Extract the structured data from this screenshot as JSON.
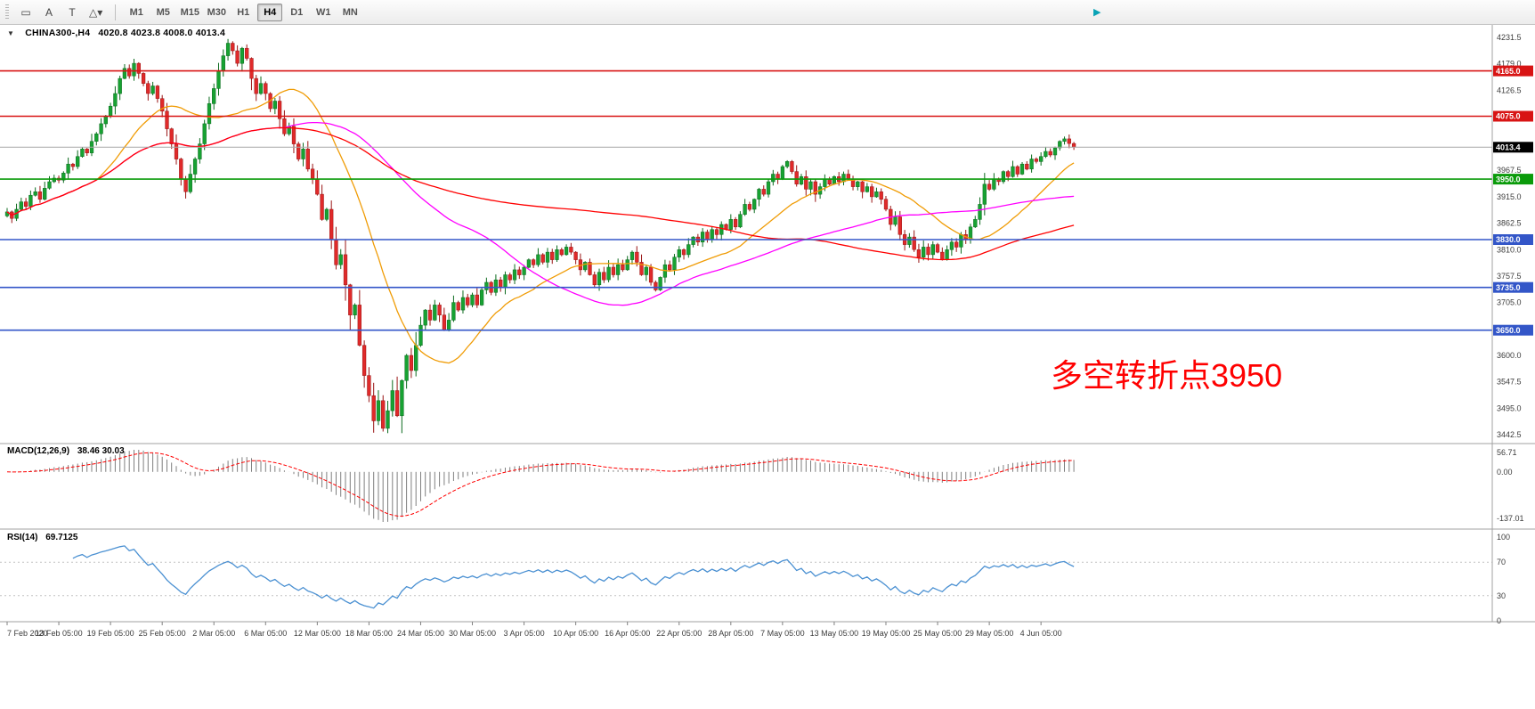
{
  "toolbar": {
    "tools": [
      {
        "id": "selection-tool",
        "glyph": "▭"
      },
      {
        "id": "text-tool",
        "glyph": "A"
      },
      {
        "id": "text-label-tool",
        "glyph": "T"
      },
      {
        "id": "shapes-tool",
        "glyph": "△▾"
      }
    ],
    "timeframes": [
      "M1",
      "M5",
      "M15",
      "M30",
      "H1",
      "H4",
      "D1",
      "W1",
      "MN"
    ],
    "active_timeframe": "H4",
    "shift_icon_glyph": "▶"
  },
  "header": {
    "dropdown_glyph": "▼",
    "symbol_period": "CHINA300-,H4",
    "ohlc_values": "4020.8 4023.8 4008.0 4013.4"
  },
  "chart_data": {
    "type": "candlestick",
    "symbol": "CHINA300-",
    "period": "H4",
    "y_max": 4231.5,
    "y_min": 3442.5,
    "y_ticks_visible": [
      "4231.5",
      "4179.0",
      "4126.5",
      "3967.5",
      "3915.0",
      "3862.5",
      "3810.0",
      "3757.5",
      "3705.0",
      "3600.0",
      "3547.5",
      "3495.0",
      "3442.5"
    ],
    "price_badges": [
      {
        "label": "4165.0",
        "price": 4165.0,
        "color": "#d81414",
        "kind": "resistance"
      },
      {
        "label": "4075.0",
        "price": 4075.0,
        "color": "#d81414",
        "kind": "resistance"
      },
      {
        "label": "3950.0",
        "price": 3950.0,
        "color": "#0a9b0a",
        "kind": "pivot"
      },
      {
        "label": "3830.0",
        "price": 3830.0,
        "color": "#3356c8",
        "kind": "support"
      },
      {
        "label": "3735.0",
        "price": 3735.0,
        "color": "#3356c8",
        "kind": "support"
      },
      {
        "label": "3650.0",
        "price": 3650.0,
        "color": "#3356c8",
        "kind": "support"
      }
    ],
    "current_price": {
      "label": "4013.4",
      "price": 4013.4,
      "color": "#000000"
    },
    "last_candle": {
      "open": 4020.8,
      "high": 4023.8,
      "low": 4008.0,
      "close": 4013.4
    },
    "x_labels": [
      "7 Feb 2020",
      "13 Feb 05:00",
      "19 Feb 05:00",
      "25 Feb 05:00",
      "2 Mar 05:00",
      "6 Mar 05:00",
      "12 Mar 05:00",
      "18 Mar 05:00",
      "24 Mar 05:00",
      "30 Mar 05:00",
      "3 Apr 05:00",
      "10 Apr 05:00",
      "16 Apr 05:00",
      "22 Apr 05:00",
      "28 Apr 05:00",
      "7 May 05:00",
      "13 May 05:00",
      "19 May 05:00",
      "25 May 05:00",
      "29 May 05:00",
      "4 Jun 05:00"
    ],
    "bars_per_label": 11,
    "closes": [
      3885,
      3872,
      3890,
      3905,
      3896,
      3918,
      3925,
      3910,
      3932,
      3945,
      3952,
      3948,
      3962,
      3980,
      3975,
      3995,
      4010,
      4002,
      4025,
      4040,
      4060,
      4075,
      4095,
      4120,
      4150,
      4170,
      4155,
      4180,
      4160,
      4140,
      4120,
      4135,
      4110,
      4085,
      4050,
      4020,
      3990,
      3950,
      3925,
      3960,
      3990,
      4020,
      4060,
      4100,
      4130,
      4165,
      4195,
      4220,
      4205,
      4180,
      4210,
      4190,
      4150,
      4120,
      4140,
      4120,
      4090,
      4105,
      4070,
      4040,
      4055,
      4020,
      3990,
      4010,
      3970,
      3950,
      3920,
      3870,
      3890,
      3830,
      3780,
      3800,
      3740,
      3680,
      3700,
      3620,
      3560,
      3520,
      3470,
      3510,
      3455,
      3490,
      3530,
      3480,
      3550,
      3600,
      3570,
      3620,
      3660,
      3690,
      3670,
      3700,
      3680,
      3650,
      3670,
      3705,
      3690,
      3715,
      3700,
      3720,
      3700,
      3730,
      3745,
      3725,
      3750,
      3735,
      3760,
      3750,
      3770,
      3760,
      3775,
      3790,
      3780,
      3800,
      3785,
      3805,
      3790,
      3810,
      3800,
      3815,
      3805,
      3790,
      3770,
      3785,
      3760,
      3740,
      3765,
      3750,
      3775,
      3760,
      3780,
      3770,
      3790,
      3805,
      3785,
      3760,
      3775,
      3745,
      3730,
      3755,
      3780,
      3770,
      3795,
      3810,
      3800,
      3820,
      3835,
      3825,
      3845,
      3830,
      3850,
      3840,
      3860,
      3850,
      3870,
      3855,
      3880,
      3900,
      3890,
      3910,
      3930,
      3920,
      3945,
      3960,
      3950,
      3975,
      3985,
      3965,
      3940,
      3955,
      3930,
      3945,
      3920,
      3935,
      3950,
      3940,
      3955,
      3945,
      3960,
      3950,
      3935,
      3945,
      3925,
      3935,
      3915,
      3925,
      3910,
      3890,
      3860,
      3875,
      3840,
      3820,
      3835,
      3810,
      3795,
      3815,
      3800,
      3820,
      3805,
      3790,
      3810,
      3825,
      3815,
      3840,
      3830,
      3855,
      3870,
      3900,
      3940,
      3930,
      3950,
      3945,
      3965,
      3955,
      3975,
      3960,
      3980,
      3970,
      3990,
      3985,
      3995,
      4005,
      3998,
      4012,
      4025,
      4030,
      4020.8,
      4013.4
    ],
    "ma_lines": [
      {
        "name": "ma-fast",
        "period": 20,
        "color": "#f09c06"
      },
      {
        "name": "ma-medium",
        "period": 60,
        "color": "#ff00ff"
      },
      {
        "name": "ma-slow",
        "period": 130,
        "color": "#ff0000"
      }
    ],
    "annotation": {
      "text": "多空转折点3950",
      "color": "#ff0000"
    },
    "macd": {
      "label": "MACD(12,26,9)",
      "values_text": "38.46 30.03",
      "fast": 12,
      "slow": 26,
      "signal": 9,
      "ticks": [
        {
          "label": "56.71",
          "value": 56.71
        },
        {
          "label": "0.00",
          "value": 0
        },
        {
          "label": "-137.01",
          "value": -137.01
        }
      ],
      "histogram_color": "#7f7f7f",
      "signal_color": "#ff0000"
    },
    "rsi": {
      "label": "RSI(14)",
      "value_text": "69.7125",
      "period": 14,
      "ticks": [
        {
          "label": "100",
          "value": 100
        },
        {
          "label": "70",
          "value": 70
        },
        {
          "label": "30",
          "value": 30
        },
        {
          "label": "0",
          "value": 0
        }
      ],
      "levels": [
        70,
        30
      ],
      "line_color": "#4a90d2"
    },
    "candle_up_color": "#17a232",
    "candle_up_edge": "#0c6b1e",
    "candle_down_color": "#e02a2a",
    "candle_down_edge": "#991414"
  }
}
